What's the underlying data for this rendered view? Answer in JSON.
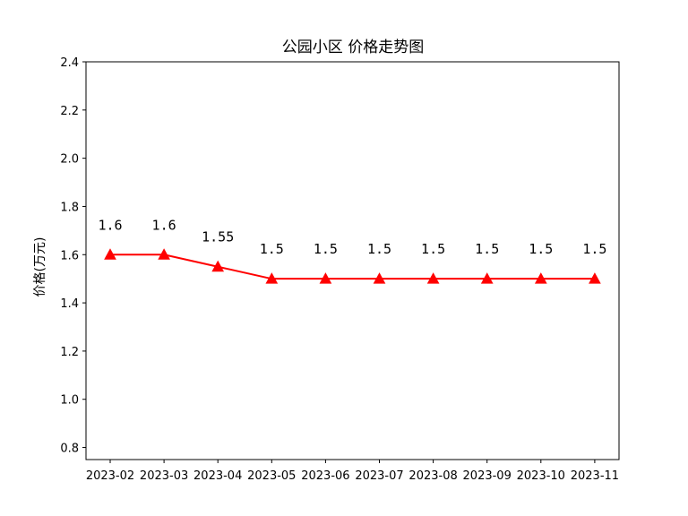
{
  "chart_data": {
    "type": "line",
    "title": "公园小区 价格走势图",
    "xlabel": "",
    "ylabel": "价格(万元)",
    "categories": [
      "2023-02",
      "2023-03",
      "2023-04",
      "2023-05",
      "2023-06",
      "2023-07",
      "2023-08",
      "2023-09",
      "2023-10",
      "2023-11"
    ],
    "series": [
      {
        "values": [
          1.6,
          1.6,
          1.55,
          1.5,
          1.5,
          1.5,
          1.5,
          1.5,
          1.5,
          1.5
        ],
        "labels": [
          "1.6",
          "1.6",
          "1.55",
          "1.5",
          "1.5",
          "1.5",
          "1.5",
          "1.5",
          "1.5",
          "1.5"
        ],
        "color": "#ff0000",
        "marker": "triangle"
      }
    ],
    "ylim": [
      0.75,
      2.4
    ],
    "yticks": [
      0.8,
      1.0,
      1.2,
      1.4,
      1.6,
      1.8,
      2.0,
      2.2,
      2.4
    ],
    "ytick_labels": [
      "0.8",
      "1.0",
      "1.2",
      "1.4",
      "1.6",
      "1.8",
      "2.0",
      "2.2",
      "2.4"
    ],
    "grid": false,
    "legend": "none"
  }
}
